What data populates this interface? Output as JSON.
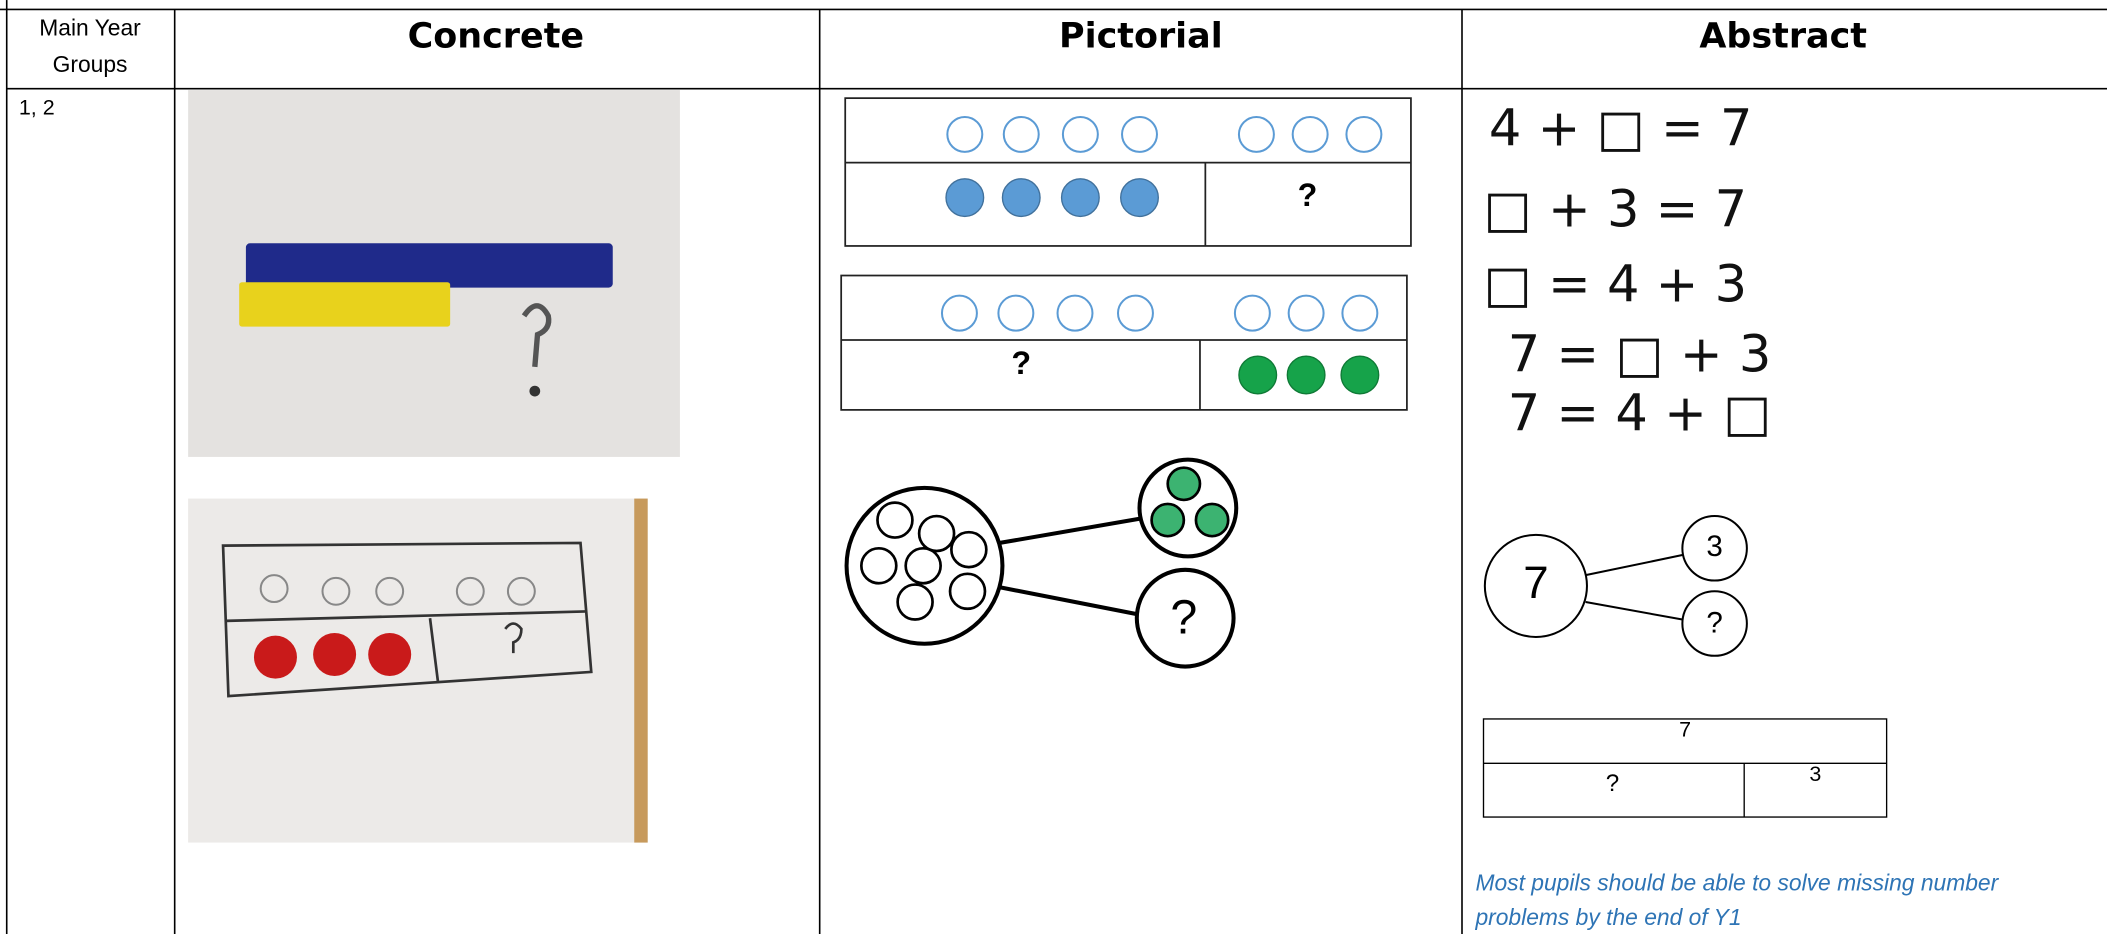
{
  "header": {
    "year_groups": [
      "Main Year",
      "Groups"
    ],
    "concrete": "Concrete",
    "pictorial": "Pictorial",
    "abstract": "Abstract"
  },
  "row": {
    "year": "1, 2",
    "pictorial": {
      "bar1_unknown": "?",
      "bar2_unknown": "?",
      "part_whole_unknown": "?"
    },
    "abstract": {
      "equations": [
        "4 + □ = 7",
        "□ + 3 = 7",
        "□ = 4 + 3",
        "7 = □ + 3",
        "7 = 4 + □"
      ],
      "part_whole": {
        "whole": "7",
        "part_known": "3",
        "part_unknown": "?"
      },
      "bar_model": {
        "whole": "7",
        "part_unknown": "?",
        "part_known": "3"
      },
      "note": [
        "Most pupils should be able to solve missing number",
        "problems by the end of Y1"
      ]
    }
  }
}
